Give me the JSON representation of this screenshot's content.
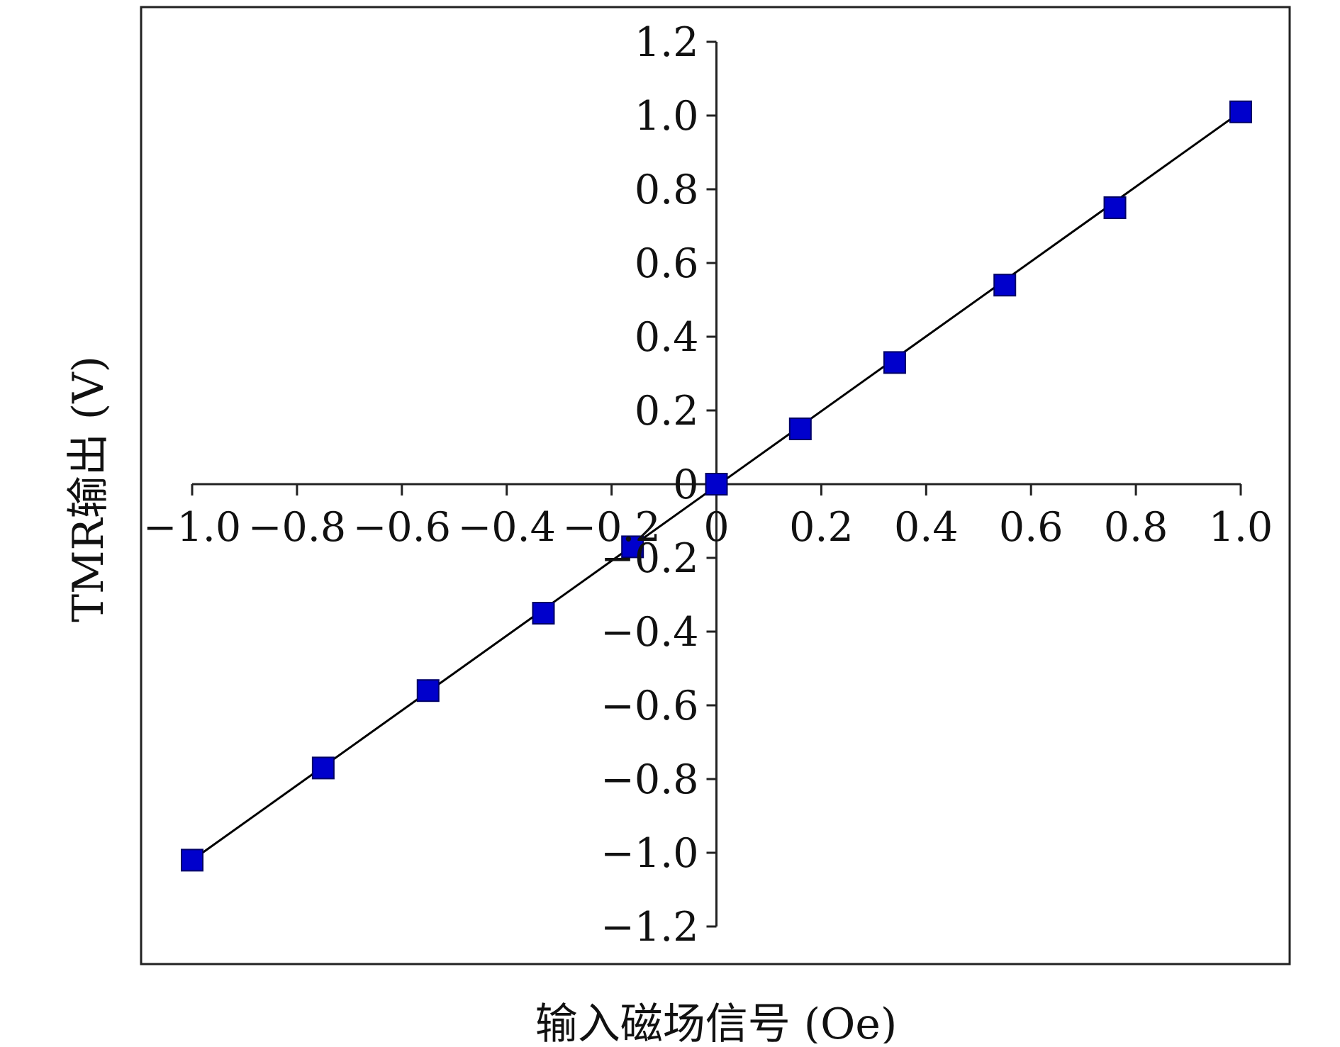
{
  "chart_data": {
    "type": "scatter",
    "title": "",
    "xlabel": "输入磁场信号 (Oe)",
    "ylabel": "TMR输出 (V)",
    "xlim": [
      -1.0,
      1.0
    ],
    "ylim": [
      -1.2,
      1.2
    ],
    "x_ticks": [
      -1.0,
      -0.8,
      -0.6,
      -0.4,
      -0.2,
      0,
      0.2,
      0.4,
      0.6,
      0.8,
      1.0
    ],
    "x_tick_labels": [
      "−1.0",
      "−0.8",
      "−0.6",
      "−0.4",
      "−0.2",
      "0",
      "0.2",
      "0.4",
      "0.6",
      "0.8",
      "1.0"
    ],
    "y_ticks": [
      1.2,
      1.0,
      0.8,
      0.6,
      0.4,
      0.2,
      0,
      -0.2,
      -0.4,
      -0.6,
      -0.8,
      -1.0,
      -1.2
    ],
    "y_tick_labels": [
      "1.2",
      "1.0",
      "0.8",
      "0.6",
      "0.4",
      "0.2",
      "0",
      "−0.2",
      "−0.4",
      "−0.6",
      "−0.8",
      "−1.0",
      "−1.2"
    ],
    "grid": false,
    "axes_style": "crossing-at-origin",
    "series": [
      {
        "kind": "points",
        "marker": "square",
        "color": "#0000cc",
        "x": [
          -1.0,
          -0.75,
          -0.55,
          -0.33,
          -0.16,
          0.0,
          0.16,
          0.34,
          0.55,
          0.76,
          1.0
        ],
        "y": [
          -1.02,
          -0.77,
          -0.56,
          -0.35,
          -0.17,
          0.0,
          0.15,
          0.33,
          0.54,
          0.75,
          1.01
        ]
      },
      {
        "kind": "fit-line",
        "color": "#000000",
        "x": [
          -1.0,
          1.0
        ],
        "y": [
          -1.02,
          1.01
        ]
      }
    ]
  }
}
